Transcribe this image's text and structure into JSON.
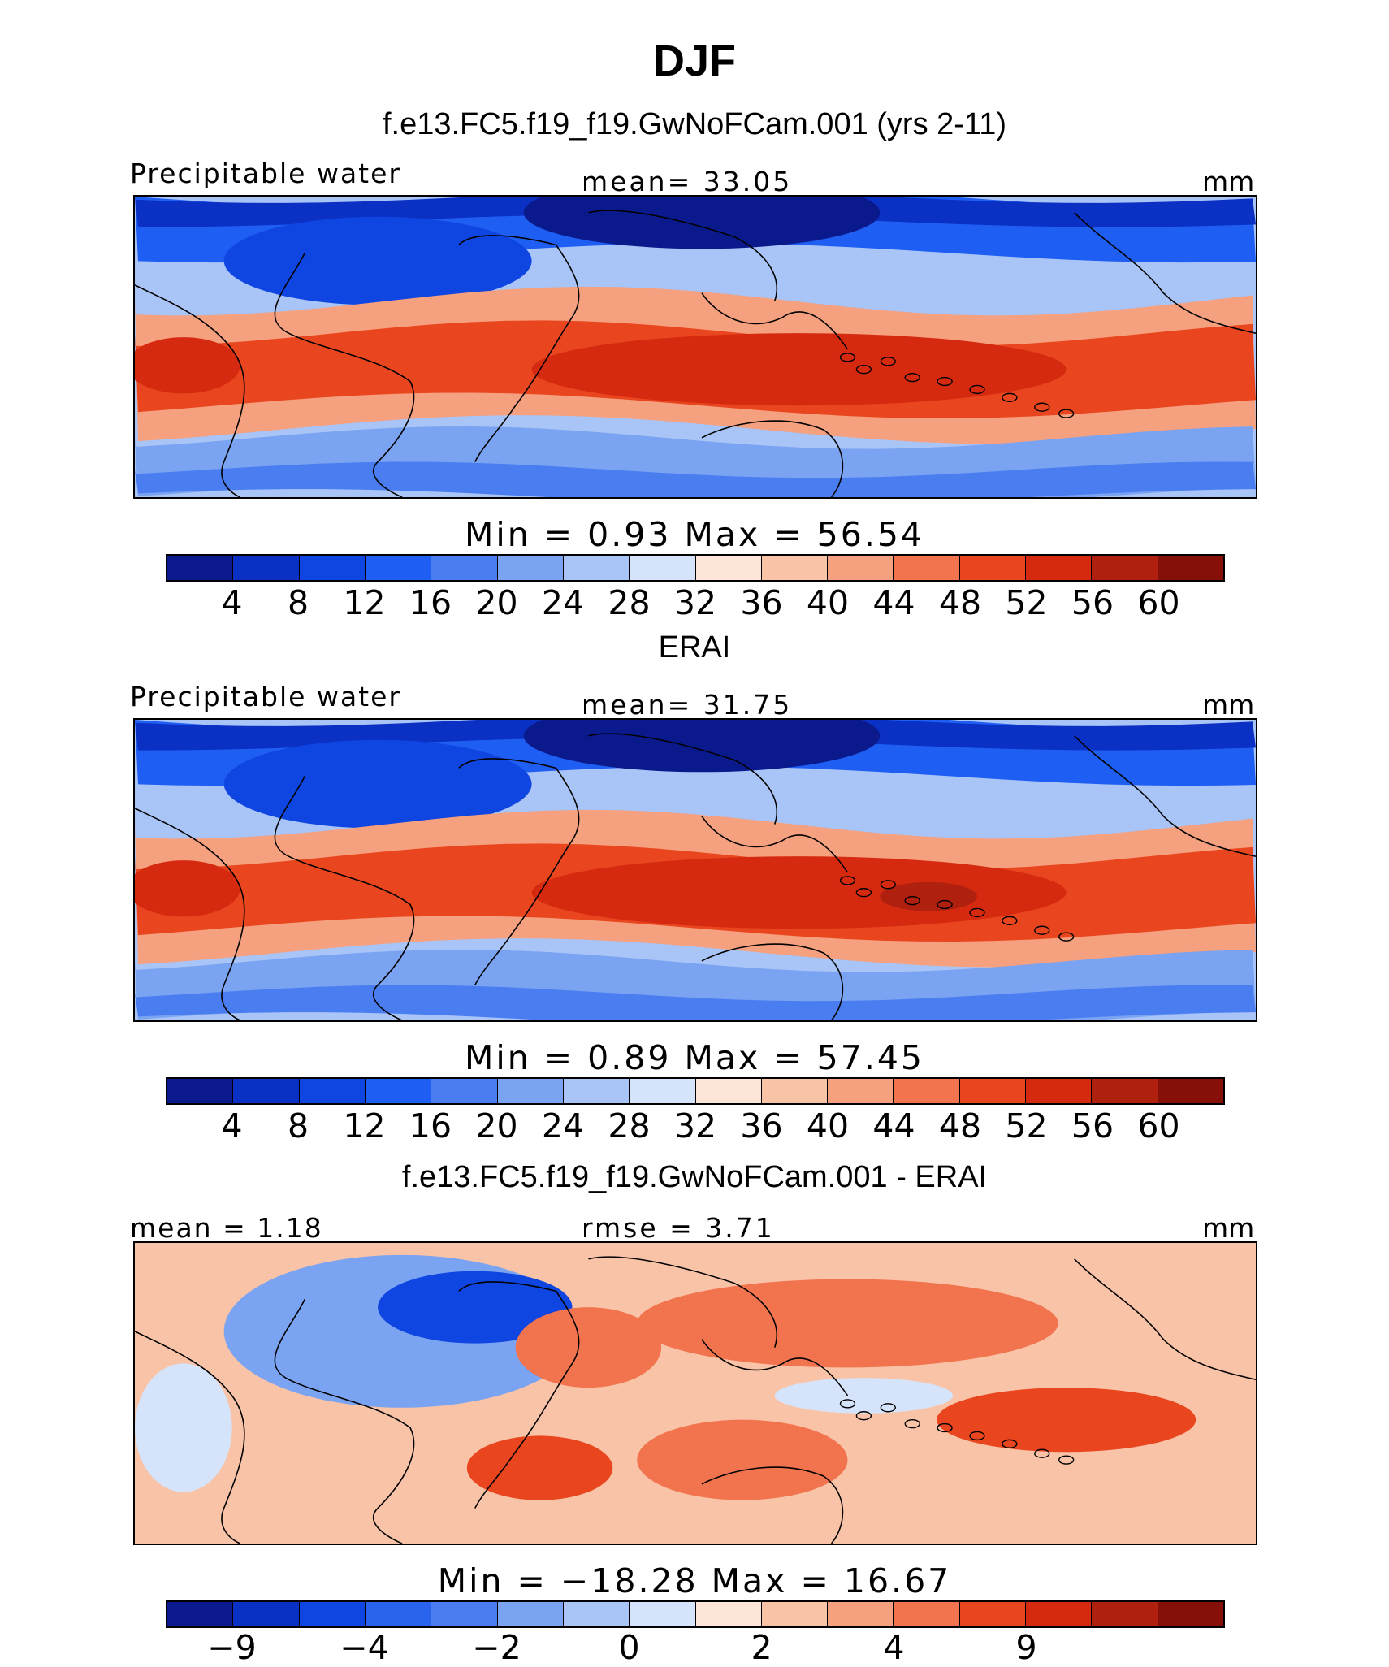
{
  "figure": {
    "season": "DJF"
  },
  "palette": {
    "precip": [
      "#0a1a8c",
      "#0b30c4",
      "#0f45e0",
      "#1f5ef2",
      "#4a7ef0",
      "#7aa3f2",
      "#a9c4f6",
      "#d6e4fb",
      "#fde6d8",
      "#f9c3a7",
      "#f5a07e",
      "#f1744e",
      "#e9461f",
      "#d62a10",
      "#b0200e",
      "#851007"
    ],
    "diff": [
      "#0a1a8c",
      "#0b30c4",
      "#0f45e0",
      "#2a63ee",
      "#4a7ef0",
      "#7aa3f2",
      "#a9c4f6",
      "#d6e4fb",
      "#fde6d8",
      "#f9c3a7",
      "#f5a07e",
      "#f1744e",
      "#e9461f",
      "#d62a10",
      "#b0200e",
      "#851007"
    ]
  },
  "panels": [
    {
      "title": "f.e13.FC5.f19_f19.GwNoFCam.001 (yrs 2-11)",
      "left_label": "Precipitable water",
      "mid_label": "mean=   33.05",
      "units": "mm",
      "minmax": "Min  =    0.93  Max  =   56.54",
      "variant": "model"
    },
    {
      "title": "ERAI",
      "left_label": "Precipitable water",
      "mid_label": "mean=   31.75",
      "units": "mm",
      "minmax": "Min  =    0.89  Max  =   57.45",
      "variant": "obs"
    },
    {
      "title": "f.e13.FC5.f19_f19.GwNoFCam.001 - ERAI",
      "left_label": "mean =    1.18",
      "mid_label": "rmse =    3.71",
      "units": "mm",
      "minmax": "Min  = −18.28  Max  =   16.67",
      "variant": "diff"
    }
  ],
  "chart_data": [
    {
      "type": "heatmap",
      "title": "f.e13.FC5.f19_f19.GwNoFCam.001 (yrs 2-11)",
      "variable": "Precipitable water",
      "units": "mm",
      "mean": 33.05,
      "min": 0.93,
      "max": 56.54,
      "colorbar_levels": [
        4,
        8,
        12,
        16,
        20,
        24,
        28,
        32,
        36,
        40,
        44,
        48,
        52,
        56,
        60
      ],
      "colorbar_tick_labels": [
        "4",
        "8",
        "12",
        "16",
        "20",
        "24",
        "28",
        "32",
        "36",
        "40",
        "44",
        "48",
        "52",
        "56",
        "60"
      ]
    },
    {
      "type": "heatmap",
      "title": "ERAI",
      "variable": "Precipitable water",
      "units": "mm",
      "mean": 31.75,
      "min": 0.89,
      "max": 57.45,
      "colorbar_levels": [
        4,
        8,
        12,
        16,
        20,
        24,
        28,
        32,
        36,
        40,
        44,
        48,
        52,
        56,
        60
      ],
      "colorbar_tick_labels": [
        "4",
        "8",
        "12",
        "16",
        "20",
        "24",
        "28",
        "32",
        "36",
        "40",
        "44",
        "48",
        "52",
        "56",
        "60"
      ]
    },
    {
      "type": "heatmap",
      "title": "f.e13.FC5.f19_f19.GwNoFCam.001 - ERAI",
      "variable": "Precipitable water difference",
      "units": "mm",
      "mean": 1.18,
      "rmse": 3.71,
      "min": -18.28,
      "max": 16.67,
      "colorbar_tick_labels": [
        "−9",
        "−4",
        "−2",
        "0",
        "2",
        "4",
        "9"
      ]
    }
  ]
}
